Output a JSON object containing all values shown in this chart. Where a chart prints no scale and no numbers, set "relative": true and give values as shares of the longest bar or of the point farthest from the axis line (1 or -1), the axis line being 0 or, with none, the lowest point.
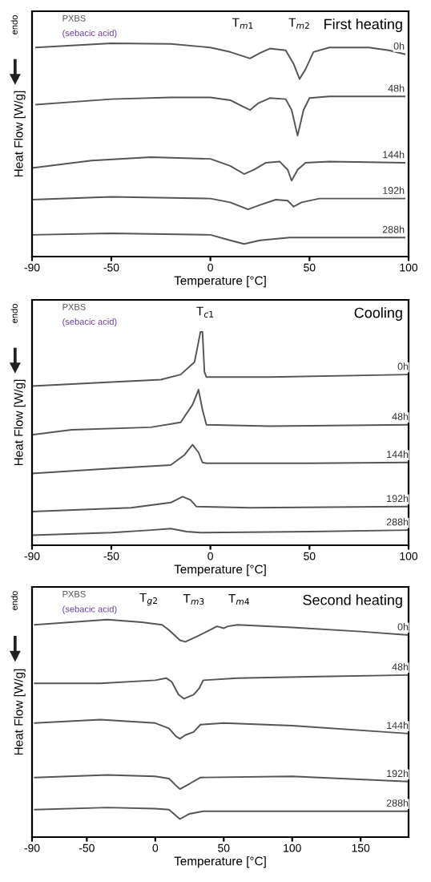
{
  "chart_data": [
    {
      "type": "line",
      "title": "First heating",
      "xlabel": "Temperature [°C]",
      "ylabel": "Heat Flow [W/g]",
      "xlim": [
        -90,
        100
      ],
      "xticks": [
        -90,
        -50,
        0,
        50,
        100
      ],
      "relative": true,
      "grid": false,
      "annotations": [
        "endo",
        "PXBS",
        "(sebacic acid)",
        "T$_{m1}$",
        "T$_{m2}$"
      ],
      "series": [
        {
          "name": "0h",
          "color": "#555555",
          "x": [
            -88,
            -50,
            -20,
            0,
            10,
            20,
            25,
            30,
            38,
            42,
            45,
            48,
            52,
            60,
            80,
            90,
            98
          ],
          "values": [
            0.98,
            1,
            0.997,
            0.98,
            0.959,
            0.929,
            0.954,
            0.975,
            0.967,
            0.903,
            0.832,
            0.878,
            0.959,
            0.98,
            0.98,
            0.967,
            0.949
          ]
        },
        {
          "name": "48h",
          "color": "#555555",
          "x": [
            -88,
            -50,
            -20,
            0,
            10,
            16,
            20,
            24,
            30,
            38,
            41,
            44,
            47,
            50,
            60,
            98
          ],
          "values": [
            0.712,
            0.738,
            0.746,
            0.746,
            0.733,
            0.705,
            0.687,
            0.718,
            0.743,
            0.738,
            0.687,
            0.567,
            0.687,
            0.743,
            0.751,
            0.751
          ]
        },
        {
          "name": "144h",
          "color": "#555555",
          "x": [
            -90,
            -60,
            -30,
            0,
            10,
            17,
            22,
            28,
            35,
            39,
            41,
            44,
            48,
            60,
            98
          ],
          "values": [
            0.415,
            0.45,
            0.466,
            0.458,
            0.425,
            0.387,
            0.407,
            0.44,
            0.445,
            0.407,
            0.356,
            0.407,
            0.44,
            0.445,
            0.44
          ]
        },
        {
          "name": "192h",
          "color": "#555555",
          "x": [
            -90,
            -50,
            0,
            10,
            19,
            25,
            33,
            39,
            42,
            46,
            55,
            98
          ],
          "values": [
            0.267,
            0.28,
            0.272,
            0.254,
            0.221,
            0.242,
            0.267,
            0.262,
            0.234,
            0.254,
            0.272,
            0.272
          ]
        },
        {
          "name": "288h",
          "color": "#555555",
          "x": [
            -90,
            -50,
            0,
            10,
            17,
            25,
            40,
            98
          ],
          "values": [
            0.102,
            0.109,
            0.102,
            0.076,
            0.059,
            0.076,
            0.089,
            0.089
          ]
        }
      ]
    },
    {
      "type": "line",
      "title": "Cooling",
      "xlabel": "Temperature [°C]",
      "ylabel": "Heat Flow [W/g]",
      "xlim": [
        -90,
        100
      ],
      "xticks": [
        -90,
        -50,
        0,
        50,
        100
      ],
      "relative": true,
      "grid": false,
      "annotations": [
        "endo",
        "PXBS",
        "(sebacic acid)",
        "T$_{c1}$"
      ],
      "series": [
        {
          "name": "0h",
          "color": "#555555",
          "x": [
            -90,
            -50,
            -25,
            -15,
            -8,
            -5,
            -4,
            -3,
            -2,
            30,
            100
          ],
          "values": [
            0.746,
            0.765,
            0.776,
            0.8,
            0.859,
            1,
            1,
            0.812,
            0.788,
            0.788,
            0.8
          ]
        },
        {
          "name": "48h",
          "color": "#555555",
          "x": [
            -90,
            -70,
            -30,
            -15,
            -9,
            -6,
            -4,
            -2,
            30,
            100
          ],
          "values": [
            0.518,
            0.541,
            0.553,
            0.576,
            0.659,
            0.729,
            0.635,
            0.565,
            0.558,
            0.565
          ]
        },
        {
          "name": "144h",
          "color": "#555555",
          "x": [
            -90,
            -50,
            -20,
            -13,
            -9,
            -6,
            -4,
            -2,
            50,
            100
          ],
          "values": [
            0.336,
            0.36,
            0.376,
            0.424,
            0.471,
            0.435,
            0.388,
            0.384,
            0.384,
            0.388
          ]
        },
        {
          "name": "192h",
          "color": "#555555",
          "x": [
            -90,
            -40,
            -20,
            -14,
            -10,
            -7,
            20,
            100
          ],
          "values": [
            0.158,
            0.176,
            0.2,
            0.228,
            0.212,
            0.181,
            0.176,
            0.181
          ]
        },
        {
          "name": "288h",
          "color": "#555555",
          "x": [
            -90,
            -50,
            -30,
            -20,
            -12,
            -5,
            50,
            100
          ],
          "values": [
            0.047,
            0.059,
            0.071,
            0.078,
            0.064,
            0.059,
            0.064,
            0.071
          ]
        }
      ]
    },
    {
      "type": "line",
      "title": "Second heating",
      "xlabel": "Temperature [°C]",
      "ylabel": "Heat Flow [W/g]",
      "xlim": [
        -90,
        185
      ],
      "xticks": [
        -90,
        -50,
        0,
        50,
        100,
        150
      ],
      "relative": true,
      "grid": false,
      "annotations": [
        "endo",
        "PXBS",
        "(sebacic acid)",
        "T$_{g2}$",
        "T$_{m3}$",
        "T$_{m4}$"
      ],
      "series": [
        {
          "name": "0h",
          "color": "#555555",
          "x": [
            -88,
            -35,
            -10,
            5,
            10,
            18,
            22,
            30,
            40,
            45,
            50,
            53,
            60,
            100,
            150,
            185
          ],
          "values": [
            0.976,
            1,
            0.988,
            0.976,
            0.952,
            0.905,
            0.898,
            0.921,
            0.952,
            0.969,
            0.96,
            0.969,
            0.976,
            0.964,
            0.945,
            0.929
          ]
        },
        {
          "name": "48h",
          "color": "#555555",
          "x": [
            -88,
            -40,
            0,
            8,
            12,
            17,
            21,
            28,
            32,
            35,
            60,
            120,
            185
          ],
          "values": [
            0.707,
            0.707,
            0.721,
            0.731,
            0.714,
            0.655,
            0.636,
            0.655,
            0.683,
            0.721,
            0.731,
            0.738,
            0.745
          ]
        },
        {
          "name": "144h",
          "color": "#555555",
          "x": [
            -88,
            -40,
            0,
            10,
            15,
            18,
            22,
            28,
            33,
            50,
            100,
            185
          ],
          "values": [
            0.524,
            0.54,
            0.524,
            0.5,
            0.464,
            0.452,
            0.469,
            0.483,
            0.517,
            0.524,
            0.512,
            0.476
          ]
        },
        {
          "name": "192h",
          "color": "#555555",
          "x": [
            -88,
            -35,
            0,
            10,
            15,
            18,
            25,
            33,
            100,
            185
          ],
          "values": [
            0.274,
            0.286,
            0.279,
            0.269,
            0.238,
            0.221,
            0.245,
            0.274,
            0.279,
            0.255
          ]
        },
        {
          "name": "288h",
          "color": "#555555",
          "x": [
            -88,
            -35,
            0,
            10,
            18,
            25,
            35,
            100,
            185
          ],
          "values": [
            0.126,
            0.136,
            0.131,
            0.126,
            0.083,
            0.107,
            0.119,
            0.119,
            0.119
          ]
        }
      ]
    }
  ]
}
